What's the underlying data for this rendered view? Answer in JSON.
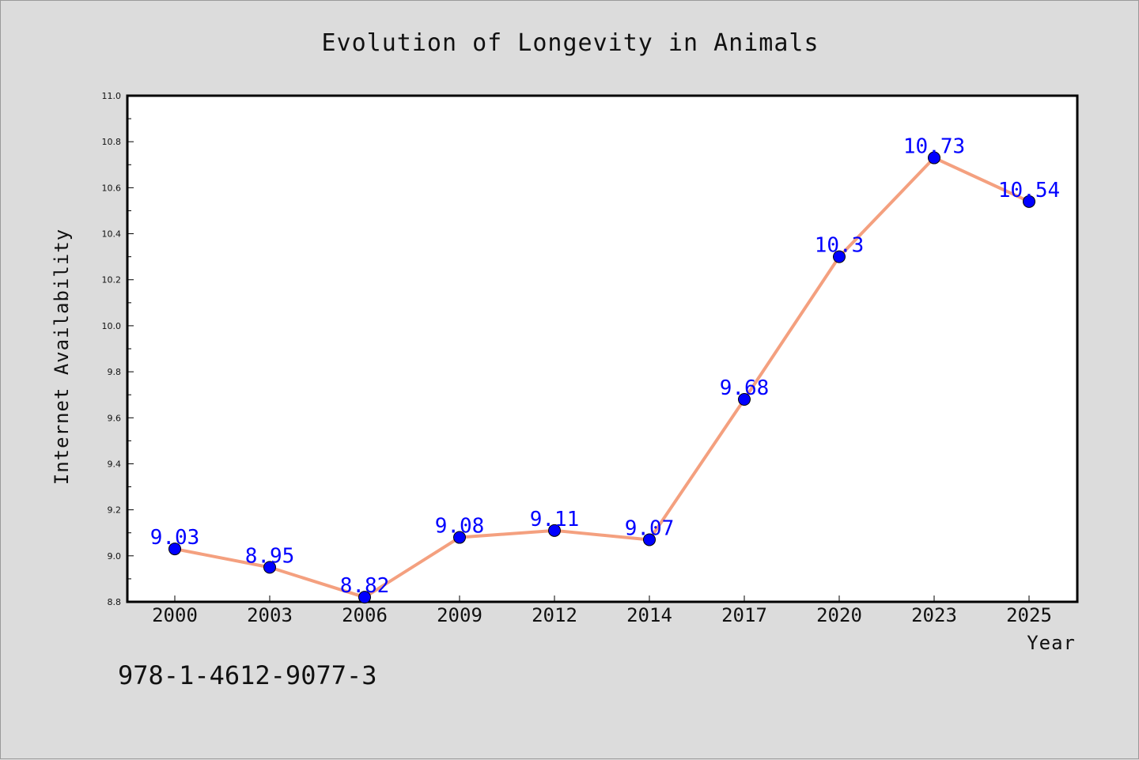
{
  "chart_data": {
    "type": "line",
    "title": "Evolution of Longevity in Animals",
    "xlabel": "Year",
    "ylabel": "Internet Availability",
    "categories": [
      "2000",
      "2003",
      "2006",
      "2009",
      "2012",
      "2014",
      "2017",
      "2020",
      "2023",
      "2025"
    ],
    "series": [
      {
        "values": [
          9.03,
          8.95,
          8.82,
          9.08,
          9.11,
          9.07,
          9.68,
          10.3,
          10.73,
          10.54
        ],
        "labels": [
          "9.03",
          "8.95",
          "8.82",
          "9.08",
          "9.11",
          "9.07",
          "9.68",
          "10.3",
          "10.73",
          "10.54"
        ],
        "line_color": "#f4a07f",
        "marker_color": "#0000ff"
      }
    ],
    "ylim": [
      8.8,
      11.0
    ],
    "yticks": [
      "8.8",
      "9.0",
      "9.2",
      "9.4",
      "9.6",
      "9.8",
      "10.0",
      "10.2",
      "10.4",
      "10.6",
      "10.8",
      "11.0"
    ],
    "grid": false,
    "legend": "none"
  },
  "footer": {
    "isbn": "978-1-4612-9077-3"
  },
  "colors": {
    "background": "#dcdcdc",
    "plot_background": "#ffffff",
    "data_label": "#0000ff",
    "line": "#f4a07f"
  }
}
